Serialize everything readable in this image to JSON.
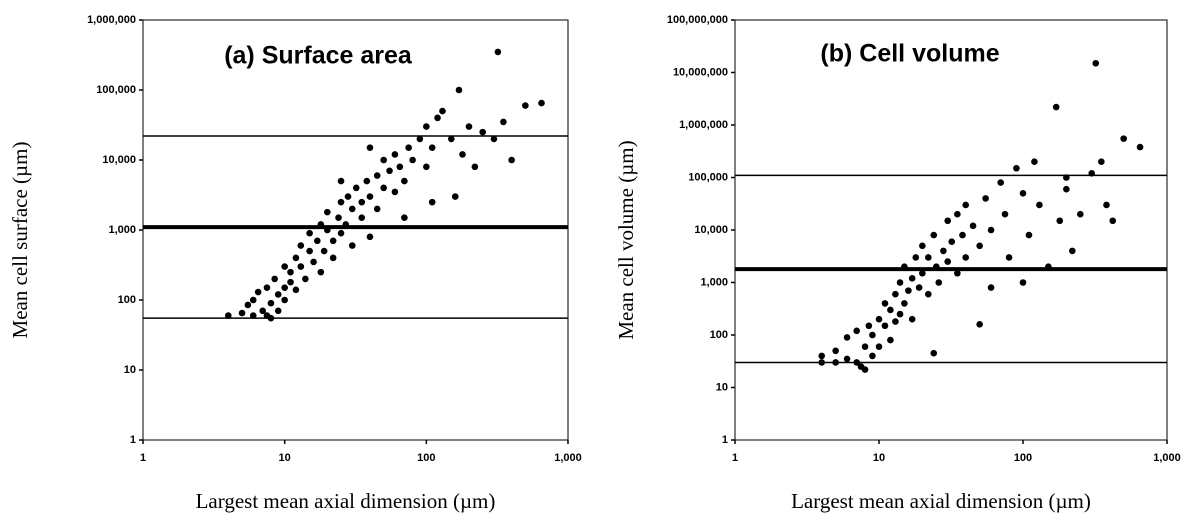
{
  "chart_data": [
    {
      "type": "scatter",
      "title": "(a) Surface area",
      "xlabel": "Largest mean axial dimension (µm)",
      "ylabel": "Mean cell surface (µm)",
      "xscale": "log",
      "yscale": "log",
      "color": "#000000",
      "xlim": [
        1,
        1000
      ],
      "ylim": [
        1,
        1000000
      ],
      "xticks": [
        1,
        10,
        100,
        {
          "value": 1000,
          "label": "1,000"
        }
      ],
      "yticks": [
        1,
        10,
        100,
        {
          "value": 1000,
          "label": "1,000"
        },
        {
          "value": 10000,
          "label": "10,000"
        },
        {
          "value": 100000,
          "label": "100,000"
        },
        {
          "value": 1000000,
          "label": "1,000,000"
        }
      ],
      "hlines": [
        {
          "value": 22000,
          "style": "thin"
        },
        {
          "value": 1100,
          "style": "thick"
        },
        {
          "value": 55,
          "style": "thin"
        }
      ],
      "x": [
        4,
        5,
        5.5,
        6,
        6,
        6.5,
        7,
        7.5,
        7.5,
        8,
        8,
        8.5,
        9,
        9,
        10,
        10,
        10,
        11,
        11,
        12,
        12,
        13,
        13,
        14,
        15,
        15,
        16,
        17,
        18,
        18,
        19,
        20,
        20,
        22,
        22,
        24,
        25,
        25,
        27,
        28,
        30,
        30,
        32,
        35,
        35,
        38,
        40,
        40,
        45,
        45,
        50,
        50,
        55,
        60,
        60,
        65,
        70,
        75,
        80,
        90,
        100,
        100,
        110,
        120,
        130,
        150,
        160,
        170,
        180,
        200,
        220,
        250,
        300,
        320,
        350,
        400,
        500,
        650,
        70,
        110,
        40,
        25
      ],
      "values": [
        60,
        65,
        85,
        60,
        100,
        130,
        70,
        60,
        150,
        55,
        90,
        200,
        120,
        70,
        150,
        300,
        100,
        250,
        180,
        400,
        140,
        300,
        600,
        200,
        500,
        900,
        350,
        700,
        1200,
        250,
        500,
        1000,
        1800,
        700,
        400,
        1500,
        2500,
        900,
        1200,
        3000,
        2000,
        600,
        4000,
        2500,
        1500,
        5000,
        3000,
        800,
        6000,
        2000,
        4000,
        10000,
        7000,
        3500,
        12000,
        8000,
        5000,
        15000,
        10000,
        20000,
        30000,
        8000,
        15000,
        40000,
        50000,
        20000,
        3000,
        100000,
        12000,
        30000,
        8000,
        25000,
        20000,
        350000,
        35000,
        10000,
        60000,
        65000,
        1500,
        2500,
        15000,
        5000
      ]
    },
    {
      "type": "scatter",
      "title": "(b) Cell volume",
      "xlabel": "Largest mean axial dimension (µm)",
      "ylabel": "Mean cell volume (µm)",
      "xscale": "log",
      "yscale": "log",
      "color": "#000000",
      "xlim": [
        1,
        1000
      ],
      "ylim": [
        1,
        100000000
      ],
      "xticks": [
        1,
        10,
        100,
        {
          "value": 1000,
          "label": "1,000"
        }
      ],
      "yticks": [
        1,
        10,
        100,
        {
          "value": 1000,
          "label": "1,000"
        },
        {
          "value": 10000,
          "label": "10,000"
        },
        {
          "value": 100000,
          "label": "100,000"
        },
        {
          "value": 1000000,
          "label": "1,000,000"
        },
        {
          "value": 10000000,
          "label": "10,000,000"
        },
        {
          "value": 100000000,
          "label": "100,000,000"
        }
      ],
      "hlines": [
        {
          "value": 110000,
          "style": "thin"
        },
        {
          "value": 1800,
          "style": "thick"
        },
        {
          "value": 30,
          "style": "thin"
        }
      ],
      "x": [
        4,
        4,
        5,
        5,
        6,
        6,
        7,
        7,
        7.5,
        8,
        8,
        8.5,
        9,
        9,
        10,
        10,
        11,
        11,
        12,
        12,
        13,
        13,
        14,
        14,
        15,
        15,
        16,
        17,
        17,
        18,
        19,
        20,
        20,
        22,
        22,
        24,
        24,
        25,
        26,
        28,
        30,
        30,
        32,
        35,
        35,
        38,
        40,
        40,
        45,
        50,
        50,
        55,
        60,
        60,
        70,
        75,
        80,
        90,
        100,
        100,
        110,
        120,
        130,
        150,
        170,
        180,
        200,
        220,
        250,
        300,
        320,
        350,
        380,
        420,
        500,
        650,
        200
      ],
      "values": [
        40,
        30,
        30,
        50,
        90,
        35,
        30,
        120,
        25,
        22,
        60,
        150,
        40,
        100,
        200,
        60,
        150,
        400,
        80,
        300,
        600,
        180,
        1000,
        250,
        400,
        2000,
        700,
        1200,
        200,
        3000,
        800,
        1500,
        5000,
        600,
        3000,
        45,
        8000,
        2000,
        1000,
        4000,
        15000,
        2500,
        6000,
        1500,
        20000,
        8000,
        3000,
        30000,
        12000,
        5000,
        160,
        40000,
        10000,
        800,
        80000,
        20000,
        3000,
        150000,
        50000,
        1000,
        8000,
        200000,
        30000,
        2000,
        2200000,
        15000,
        60000,
        4000,
        20000,
        120000,
        15000000,
        200000,
        30000,
        15000,
        550000,
        380000,
        100000
      ]
    }
  ]
}
